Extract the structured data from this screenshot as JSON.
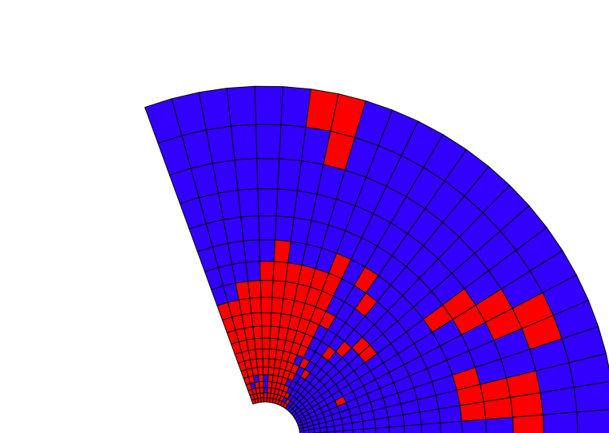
{
  "colors": {
    "fill_a": "#3300ff",
    "fill_b": "#ff0000",
    "grid_line": "#000000",
    "background": "#ffffff"
  },
  "mesh": {
    "start_angle_deg": 0,
    "end_angle_deg": 110,
    "inner_radius_units": 1,
    "outer_radius_units": 10,
    "rings": 20,
    "sectors": 24
  },
  "red_cells": [
    [
      0,
      12
    ],
    [
      0,
      13
    ],
    [
      0,
      14
    ],
    [
      0,
      15
    ],
    [
      0,
      16
    ],
    [
      0,
      17
    ],
    [
      0,
      18
    ],
    [
      0,
      19
    ],
    [
      0,
      20
    ],
    [
      0,
      21
    ],
    [
      0,
      22
    ],
    [
      0,
      23
    ],
    [
      1,
      12
    ],
    [
      1,
      14
    ],
    [
      1,
      15
    ],
    [
      1,
      16
    ],
    [
      1,
      17
    ],
    [
      1,
      18
    ],
    [
      1,
      19
    ],
    [
      1,
      20
    ],
    [
      1,
      21
    ],
    [
      1,
      22
    ],
    [
      1,
      23
    ],
    [
      2,
      13
    ],
    [
      2,
      14
    ],
    [
      2,
      15
    ],
    [
      2,
      16
    ],
    [
      2,
      17
    ],
    [
      2,
      18
    ],
    [
      2,
      20
    ],
    [
      2,
      21
    ],
    [
      2,
      22
    ],
    [
      2,
      23
    ],
    [
      3,
      14
    ],
    [
      3,
      15
    ],
    [
      3,
      16
    ],
    [
      3,
      17
    ],
    [
      3,
      18
    ],
    [
      3,
      20
    ],
    [
      3,
      21
    ],
    [
      3,
      23
    ],
    [
      4,
      15
    ],
    [
      4,
      16
    ],
    [
      4,
      17
    ],
    [
      4,
      18
    ],
    [
      4,
      20
    ],
    [
      4,
      22
    ],
    [
      4,
      23
    ],
    [
      5,
      14
    ],
    [
      5,
      15
    ],
    [
      5,
      16
    ],
    [
      5,
      17
    ],
    [
      5,
      18
    ],
    [
      5,
      19
    ],
    [
      5,
      20
    ],
    [
      5,
      21
    ],
    [
      5,
      22
    ],
    [
      5,
      23
    ],
    [
      6,
      12
    ],
    [
      6,
      14
    ],
    [
      6,
      15
    ],
    [
      6,
      16
    ],
    [
      6,
      17
    ],
    [
      6,
      18
    ],
    [
      6,
      19
    ],
    [
      6,
      20
    ],
    [
      6,
      21
    ],
    [
      6,
      22
    ],
    [
      6,
      23
    ],
    [
      7,
      5
    ],
    [
      7,
      13
    ],
    [
      7,
      15
    ],
    [
      7,
      16
    ],
    [
      7,
      17
    ],
    [
      7,
      18
    ],
    [
      7,
      19
    ],
    [
      7,
      20
    ],
    [
      7,
      21
    ],
    [
      7,
      22
    ],
    [
      7,
      23
    ],
    [
      8,
      14
    ],
    [
      8,
      15
    ],
    [
      8,
      16
    ],
    [
      8,
      17
    ],
    [
      8,
      18
    ],
    [
      8,
      19
    ],
    [
      8,
      20
    ],
    [
      8,
      21
    ],
    [
      8,
      22
    ],
    [
      8,
      23
    ],
    [
      9,
      11
    ],
    [
      9,
      14
    ],
    [
      9,
      15
    ],
    [
      9,
      16
    ],
    [
      9,
      17
    ],
    [
      9,
      18
    ],
    [
      9,
      19
    ],
    [
      9,
      20
    ],
    [
      9,
      21
    ],
    [
      9,
      22
    ],
    [
      9,
      23
    ],
    [
      10,
      10
    ],
    [
      10,
      14
    ],
    [
      10,
      15
    ],
    [
      10,
      16
    ],
    [
      10,
      17
    ],
    [
      10,
      18
    ],
    [
      10,
      19
    ],
    [
      10,
      20
    ],
    [
      10,
      21
    ],
    [
      10,
      22
    ],
    [
      10,
      23
    ],
    [
      11,
      8
    ],
    [
      11,
      9
    ],
    [
      11,
      13
    ],
    [
      11,
      14
    ],
    [
      11,
      15
    ],
    [
      11,
      16
    ],
    [
      11,
      17
    ],
    [
      11,
      18
    ],
    [
      11,
      19
    ],
    [
      11,
      20
    ],
    [
      11,
      21
    ],
    [
      11,
      22
    ],
    [
      11,
      23
    ],
    [
      12,
      14
    ],
    [
      12,
      15
    ],
    [
      12,
      16
    ],
    [
      12,
      17
    ],
    [
      12,
      18
    ],
    [
      12,
      19
    ],
    [
      12,
      20
    ],
    [
      12,
      21
    ],
    [
      13,
      11
    ],
    [
      13,
      14
    ],
    [
      13,
      15
    ],
    [
      13,
      16
    ],
    [
      13,
      17
    ],
    [
      13,
      18
    ],
    [
      13,
      19
    ],
    [
      14,
      12
    ],
    [
      14,
      14
    ],
    [
      14,
      18
    ],
    [
      15,
      1
    ],
    [
      15,
      2
    ],
    [
      15,
      3
    ],
    [
      15,
      7
    ],
    [
      16,
      1
    ],
    [
      16,
      2
    ],
    [
      16,
      6
    ],
    [
      16,
      7
    ],
    [
      17,
      0
    ],
    [
      17,
      1
    ],
    [
      17,
      2
    ],
    [
      17,
      5
    ],
    [
      17,
      6
    ],
    [
      18,
      4
    ],
    [
      18,
      5
    ],
    [
      18,
      16
    ],
    [
      19,
      16
    ],
    [
      19,
      17
    ]
  ]
}
